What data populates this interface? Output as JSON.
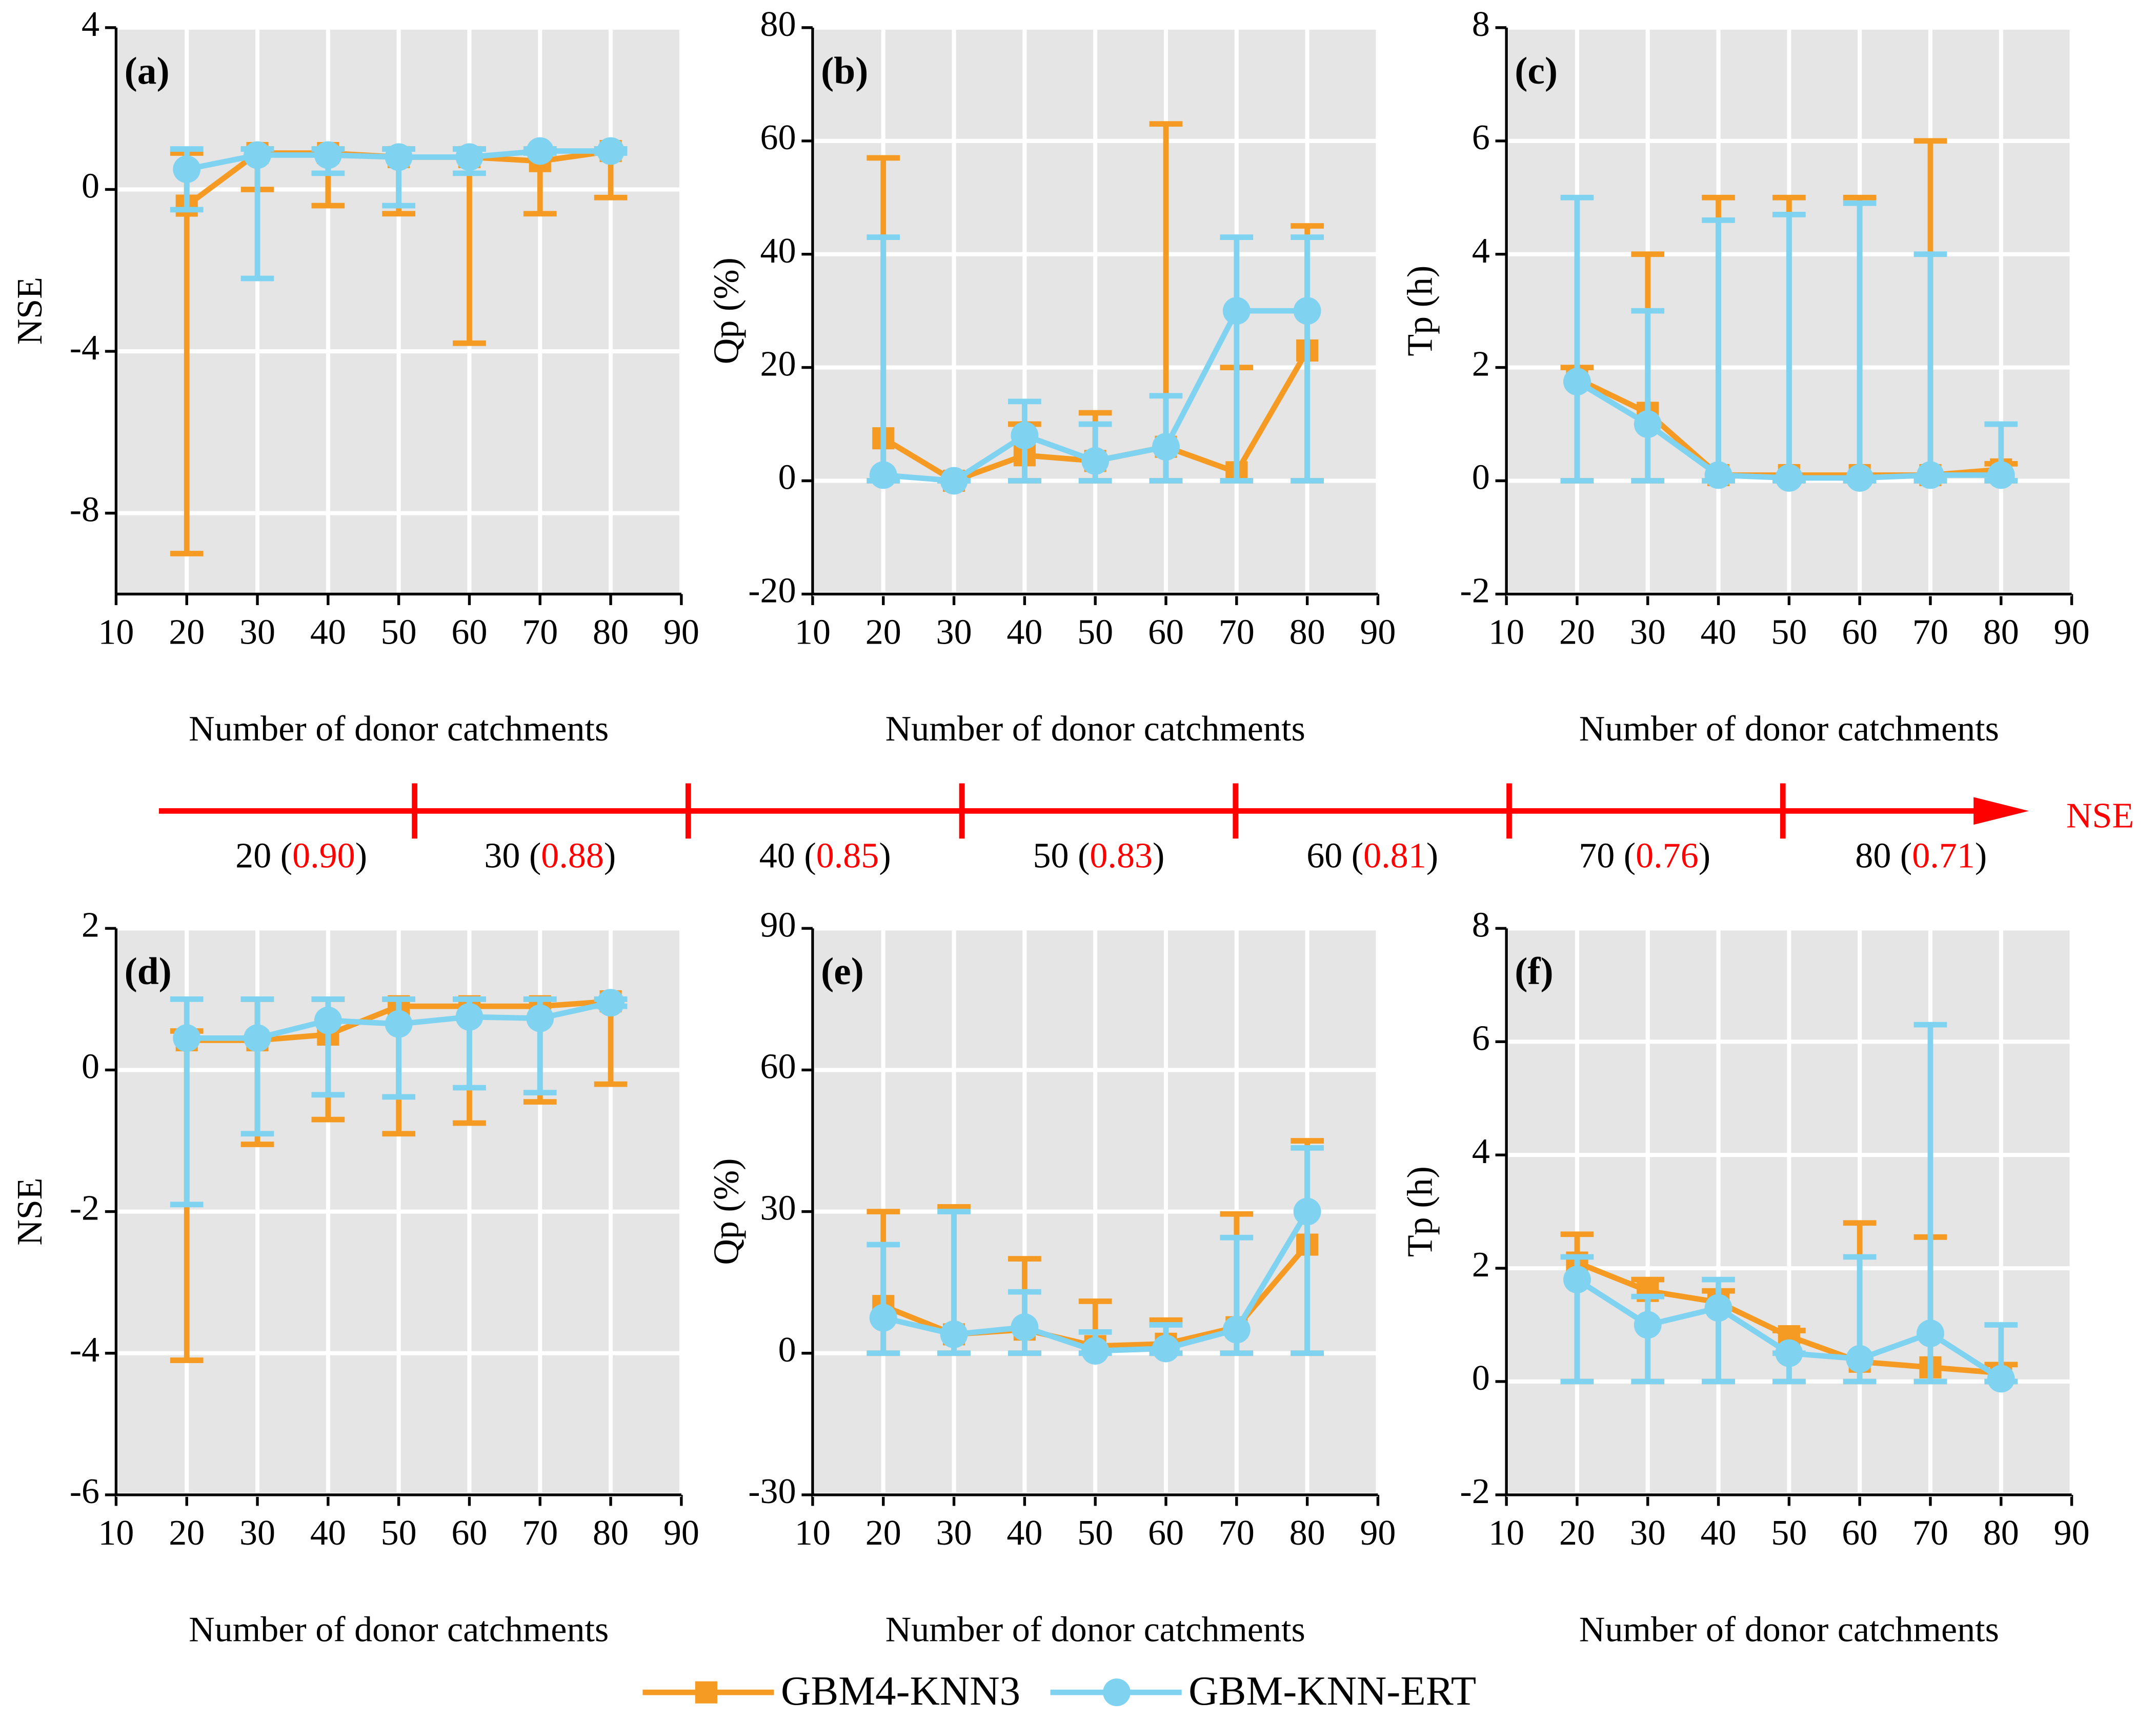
{
  "chart_data": [
    {
      "type": "line",
      "title": "(a)",
      "xlabel": "Number of donor catchments",
      "ylabel": "NSE",
      "x": [
        20,
        30,
        40,
        50,
        60,
        70,
        80
      ],
      "xlim": [
        10,
        90
      ],
      "xticks": [
        10,
        20,
        30,
        40,
        50,
        60,
        70,
        80,
        90
      ],
      "ylim": [
        -10,
        4
      ],
      "yticks": [
        -8,
        -4,
        0,
        4
      ],
      "grid": true,
      "series": [
        {
          "name": "GBM4-KNN3",
          "color": "#f59a23",
          "marker": "square",
          "values": [
            -0.4,
            0.9,
            0.9,
            0.8,
            0.8,
            0.7,
            0.95
          ],
          "low": [
            -9,
            0,
            -0.4,
            -0.6,
            -3.8,
            -0.6,
            -0.2
          ],
          "high": [
            0.9,
            1,
            1,
            1,
            1,
            1,
            1
          ]
        },
        {
          "name": "GBM-KNN-ERT",
          "color": "#7fd3f0",
          "marker": "circle",
          "values": [
            0.5,
            0.85,
            0.85,
            0.8,
            0.8,
            0.95,
            0.95
          ],
          "low": [
            -0.5,
            -2.2,
            0.4,
            -0.4,
            0.4,
            0.9,
            0.9
          ],
          "high": [
            1,
            1,
            1,
            1,
            1,
            1,
            1
          ]
        }
      ]
    },
    {
      "type": "line",
      "title": "(b)",
      "xlabel": "Number of donor catchments",
      "ylabel": "Qp (%)",
      "x": [
        20,
        30,
        40,
        50,
        60,
        70,
        80
      ],
      "xlim": [
        10,
        90
      ],
      "xticks": [
        10,
        20,
        30,
        40,
        50,
        60,
        70,
        80,
        90
      ],
      "ylim": [
        -20,
        80
      ],
      "yticks": [
        -20,
        0,
        20,
        40,
        60,
        80
      ],
      "grid": true,
      "series": [
        {
          "name": "GBM4-KNN3",
          "color": "#f59a23",
          "marker": "square",
          "values": [
            7.5,
            0,
            4.5,
            3.5,
            6,
            1.5,
            23
          ],
          "low": [
            0,
            0,
            0,
            0,
            0,
            0,
            0
          ],
          "high": [
            57,
            0,
            10,
            12,
            63,
            20,
            45
          ]
        },
        {
          "name": "GBM-KNN-ERT",
          "color": "#7fd3f0",
          "marker": "circle",
          "values": [
            1,
            0,
            8,
            3.5,
            6,
            30,
            30
          ],
          "low": [
            0,
            0,
            0,
            0,
            0,
            0,
            0
          ],
          "high": [
            43,
            0,
            14,
            10,
            15,
            43,
            43
          ]
        }
      ]
    },
    {
      "type": "line",
      "title": "(c)",
      "xlabel": "Number of donor catchments",
      "ylabel": "Tp (h)",
      "x": [
        20,
        30,
        40,
        50,
        60,
        70,
        80
      ],
      "xlim": [
        10,
        90
      ],
      "xticks": [
        10,
        20,
        30,
        40,
        50,
        60,
        70,
        80,
        90
      ],
      "ylim": [
        -2,
        8
      ],
      "yticks": [
        -2,
        0,
        2,
        4,
        6,
        8
      ],
      "grid": true,
      "series": [
        {
          "name": "GBM4-KNN3",
          "color": "#f59a23",
          "marker": "square",
          "values": [
            1.8,
            1.2,
            0.1,
            0.1,
            0.1,
            0.1,
            0.2
          ],
          "low": [
            0,
            0,
            0,
            0,
            0,
            0,
            0
          ],
          "high": [
            2,
            4,
            5,
            5,
            5,
            6,
            0.3
          ]
        },
        {
          "name": "GBM-KNN-ERT",
          "color": "#7fd3f0",
          "marker": "circle",
          "values": [
            1.75,
            1,
            0.1,
            0.05,
            0.05,
            0.1,
            0.1
          ],
          "low": [
            0,
            0,
            0,
            0,
            0,
            0,
            0
          ],
          "high": [
            5,
            3,
            4.6,
            4.7,
            4.9,
            4,
            1
          ]
        }
      ]
    },
    {
      "type": "line",
      "title": "(d)",
      "xlabel": "Number of donor catchments",
      "ylabel": "NSE",
      "x": [
        20,
        30,
        40,
        50,
        60,
        70,
        80
      ],
      "xlim": [
        10,
        90
      ],
      "xticks": [
        10,
        20,
        30,
        40,
        50,
        60,
        70,
        80,
        90
      ],
      "ylim": [
        -6,
        2
      ],
      "yticks": [
        -6,
        -4,
        -2,
        0,
        2
      ],
      "grid": true,
      "series": [
        {
          "name": "GBM4-KNN3",
          "color": "#f59a23",
          "marker": "square",
          "values": [
            0.42,
            0.42,
            0.5,
            0.9,
            0.9,
            0.9,
            0.97
          ],
          "low": [
            -4.1,
            -1.05,
            -0.7,
            -0.9,
            -0.75,
            -0.45,
            -0.2
          ],
          "high": [
            0.55,
            1,
            1,
            1,
            1,
            1,
            1
          ]
        },
        {
          "name": "GBM-KNN-ERT",
          "color": "#7fd3f0",
          "marker": "circle",
          "values": [
            0.45,
            0.45,
            0.7,
            0.65,
            0.75,
            0.73,
            0.95
          ],
          "low": [
            -1.9,
            -0.9,
            -0.35,
            -0.38,
            -0.25,
            -0.32,
            0.9
          ],
          "high": [
            1,
            1,
            1,
            1,
            1,
            1,
            1
          ]
        }
      ]
    },
    {
      "type": "line",
      "title": "(e)",
      "xlabel": "Number of donor catchments",
      "ylabel": "Qp (%)",
      "x": [
        20,
        30,
        40,
        50,
        60,
        70,
        80
      ],
      "xlim": [
        10,
        90
      ],
      "xticks": [
        10,
        20,
        30,
        40,
        50,
        60,
        70,
        80,
        90
      ],
      "ylim": [
        -30,
        90
      ],
      "yticks": [
        -30,
        0,
        30,
        60,
        90
      ],
      "grid": true,
      "series": [
        {
          "name": "GBM4-KNN3",
          "color": "#f59a23",
          "marker": "square",
          "values": [
            10,
            4,
            5,
            1.5,
            2,
            5.5,
            23
          ],
          "low": [
            0,
            0,
            0,
            0,
            0,
            0,
            0
          ],
          "high": [
            30,
            31,
            20,
            11,
            7,
            29.5,
            45
          ]
        },
        {
          "name": "GBM-KNN-ERT",
          "color": "#7fd3f0",
          "marker": "circle",
          "values": [
            7.5,
            4,
            5.5,
            0.5,
            1,
            5,
            30
          ],
          "low": [
            0,
            0,
            0,
            0,
            0,
            0,
            0
          ],
          "high": [
            23,
            30,
            13,
            4.5,
            6,
            24.5,
            43.5
          ]
        }
      ]
    },
    {
      "type": "line",
      "title": "(f)",
      "xlabel": "Number of donor catchments",
      "ylabel": "Tp (h)",
      "x": [
        20,
        30,
        40,
        50,
        60,
        70,
        80
      ],
      "xlim": [
        10,
        90
      ],
      "xticks": [
        10,
        20,
        30,
        40,
        50,
        60,
        70,
        80,
        90
      ],
      "ylim": [
        -2,
        8
      ],
      "yticks": [
        -2,
        0,
        2,
        4,
        6,
        8
      ],
      "grid": true,
      "series": [
        {
          "name": "GBM4-KNN3",
          "color": "#f59a23",
          "marker": "square",
          "values": [
            2.1,
            1.6,
            1.4,
            0.8,
            0.35,
            0.25,
            0.15
          ],
          "low": [
            0,
            0,
            0,
            0,
            0,
            0,
            0
          ],
          "high": [
            2.6,
            1.8,
            1.6,
            0.9,
            2.8,
            2.55,
            0.3
          ]
        },
        {
          "name": "GBM-KNN-ERT",
          "color": "#7fd3f0",
          "marker": "circle",
          "values": [
            1.8,
            1,
            1.3,
            0.5,
            0.4,
            0.85,
            0.05
          ],
          "low": [
            0,
            0,
            0,
            0,
            0,
            0,
            0
          ],
          "high": [
            2.2,
            1.5,
            1.8,
            0.5,
            2.2,
            6.3,
            1
          ]
        }
      ]
    }
  ],
  "nse_axis": {
    "label": "NSE",
    "color": "#ff0000",
    "items": [
      {
        "text": "20 (",
        "value": "0.90",
        "close": ")"
      },
      {
        "text": "30 (",
        "value": "0.88",
        "close": ")"
      },
      {
        "text": "40 (",
        "value": "0.85",
        "close": ")"
      },
      {
        "text": "50 (",
        "value": "0.83",
        "close": ")"
      },
      {
        "text": "60 (",
        "value": "0.81",
        "close": ")"
      },
      {
        "text": "70 (",
        "value": "0.76",
        "close": ")"
      },
      {
        "text": "80 (",
        "value": "0.71",
        "close": ")"
      }
    ]
  }
}
